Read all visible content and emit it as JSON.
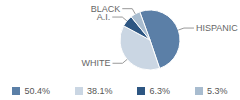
{
  "chart_data": {
    "type": "pie",
    "categories": [
      "HISPANIC",
      "WHITE",
      "A.I.",
      "BLACK"
    ],
    "values": [
      50.4,
      38.1,
      6.3,
      5.3
    ],
    "value_labels": [
      "50.4%",
      "38.1%",
      "6.3%",
      "5.3%"
    ],
    "colors": [
      "#5b7fa7",
      "#cad6e3",
      "#2d5682",
      "#a8bccf"
    ],
    "legend": "bottom"
  }
}
